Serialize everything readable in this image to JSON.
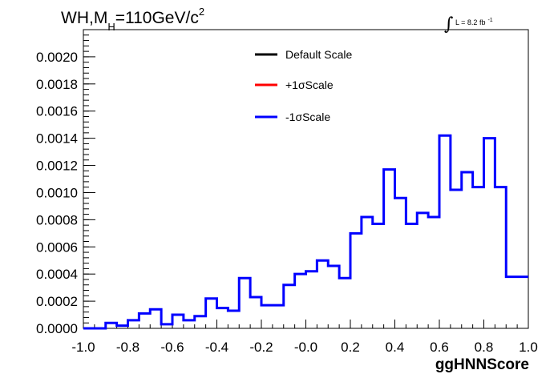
{
  "chart_data": {
    "type": "histogram",
    "title": {
      "main_a": "WH,M",
      "sub": "H",
      "main_b": "=110GeV/c",
      "sup": "2"
    },
    "luminosity": {
      "symbol": "∫",
      "text": "L = 8.2 fb",
      "sup": "-1"
    },
    "xlabel": "ggHNNScore",
    "ylabel": "",
    "xlim": [
      -1.0,
      1.0
    ],
    "ylim": [
      0,
      0.0022
    ],
    "x_ticks": [
      "-1.0",
      "-0.8",
      "-0.6",
      "-0.4",
      "-0.2",
      "-0.0",
      "0.2",
      "0.4",
      "0.6",
      "0.8",
      "1.0"
    ],
    "y_ticks": [
      "0.0000",
      "0.0002",
      "0.0004",
      "0.0006",
      "0.0008",
      "0.0010",
      "0.0012",
      "0.0014",
      "0.0016",
      "0.0018",
      "0.0020"
    ],
    "bin_edges_start": -1.0,
    "bin_width": 0.05,
    "legend": {
      "placement": "top-center",
      "entries": [
        {
          "label": "Default Scale",
          "color": "#000000"
        },
        {
          "label": "+1σScale",
          "color": "#ff0000"
        },
        {
          "label": "-1σScale",
          "color": "#0000ff"
        }
      ]
    },
    "series": [
      {
        "name": "-1σScale",
        "color": "#0000ff",
        "visible_on_top": true,
        "values": [
          0.0,
          0.0,
          4e-05,
          2e-05,
          6e-05,
          0.00011,
          0.00014,
          3e-05,
          0.0001,
          6e-05,
          9e-05,
          0.00022,
          0.00015,
          0.00013,
          0.00037,
          0.00023,
          0.00017,
          0.00017,
          0.00032,
          0.0004,
          0.00042,
          0.0005,
          0.00046,
          0.00037,
          0.0007,
          0.00082,
          0.00077,
          0.00117,
          0.00096,
          0.00077,
          0.00085,
          0.00082,
          0.00142,
          0.00102,
          0.00115,
          0.00104,
          0.0014,
          0.00104,
          0.00038,
          0.00038
        ]
      }
    ]
  }
}
